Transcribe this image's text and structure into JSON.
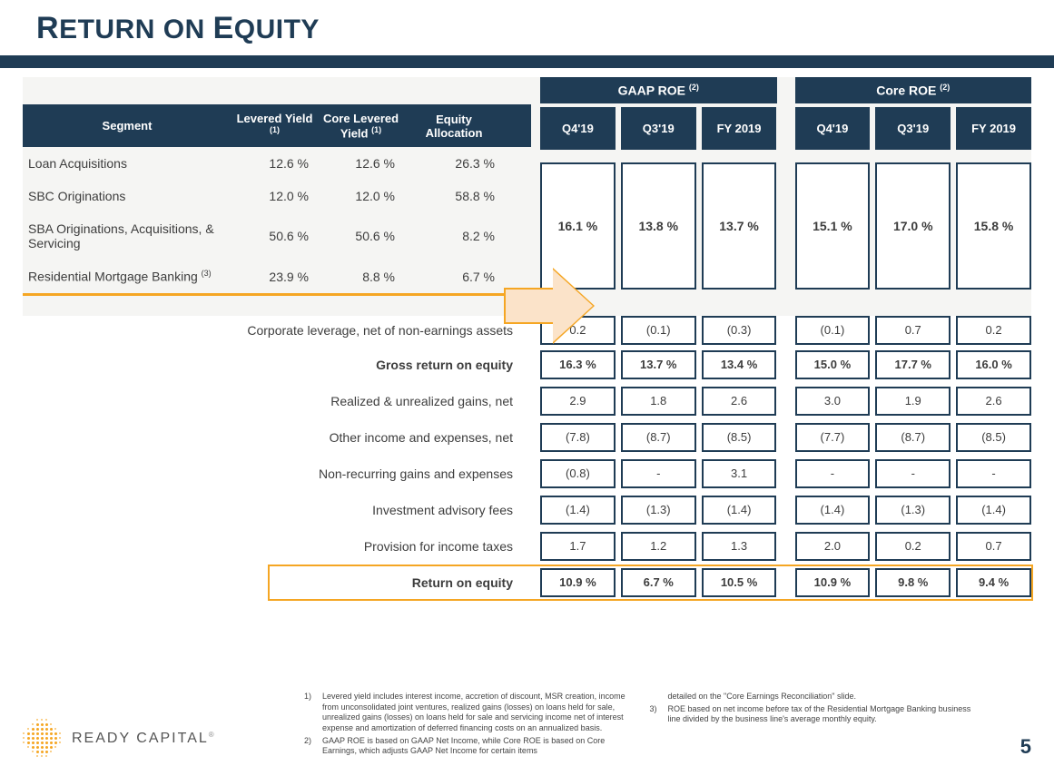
{
  "title_parts": {
    "r": "R",
    "eturn_on": "ETURN ON ",
    "e": "E",
    "quity": "QUITY"
  },
  "columns_left": {
    "segment": "Segment",
    "levered_yield": "Levered Yield ",
    "core_levered_yield": "Core Levered Yield ",
    "equity_allocation": "Equity Allocation",
    "yield_sup": "(1)"
  },
  "segments": [
    {
      "name": "Loan Acquisitions",
      "ly": "12.6 %",
      "cly": "12.6 %",
      "ea": "26.3 %"
    },
    {
      "name": "SBC Originations",
      "ly": "12.0 %",
      "cly": "12.0 %",
      "ea": "58.8 %"
    },
    {
      "name": "SBA Originations, Acquisitions, & Servicing",
      "ly": "50.6 %",
      "cly": "50.6 %",
      "ea": "8.2 %"
    },
    {
      "name": "Residential Mortgage Banking ",
      "sup": "(3)",
      "ly": "23.9 %",
      "cly": "8.8 %",
      "ea": "6.7 %"
    }
  ],
  "roe_groups": [
    {
      "title": "GAAP ROE ",
      "sup": "(2)",
      "cols": [
        "Q4'19",
        "Q3'19",
        "FY 2019"
      ],
      "segment_total": [
        "16.1  %",
        "13.8  %",
        "13.7  %"
      ]
    },
    {
      "title": "Core ROE ",
      "sup": "(2)",
      "cols": [
        "Q4'19",
        "Q3'19",
        "FY 2019"
      ],
      "segment_total": [
        "15.1  %",
        "17.0  %",
        "15.8  %"
      ]
    }
  ],
  "line_items": [
    {
      "label": "Corporate leverage, net of non-earnings assets",
      "bold": false,
      "v": [
        [
          "0.2",
          "(0.1)",
          "(0.3)"
        ],
        [
          "(0.1)",
          "0.7",
          "0.2"
        ]
      ]
    },
    {
      "label": "Gross return on equity",
      "bold": true,
      "v": [
        [
          "16.3 %",
          "13.7 %",
          "13.4 %"
        ],
        [
          "15.0 %",
          "17.7 %",
          "16.0 %"
        ]
      ]
    },
    {
      "label": "Realized & unrealized gains, net",
      "bold": false,
      "v": [
        [
          "2.9",
          "1.8",
          "2.6"
        ],
        [
          "3.0",
          "1.9",
          "2.6"
        ]
      ]
    },
    {
      "label": "Other income and expenses, net",
      "bold": false,
      "v": [
        [
          "(7.8)",
          "(8.7)",
          "(8.5)"
        ],
        [
          "(7.7)",
          "(8.7)",
          "(8.5)"
        ]
      ]
    },
    {
      "label": "Non-recurring gains and expenses",
      "bold": false,
      "v": [
        [
          "(0.8)",
          "-",
          "3.1"
        ],
        [
          "-",
          "-",
          "-"
        ]
      ]
    },
    {
      "label": "Investment advisory fees",
      "bold": false,
      "v": [
        [
          "(1.4)",
          "(1.3)",
          "(1.4)"
        ],
        [
          "(1.4)",
          "(1.3)",
          "(1.4)"
        ]
      ]
    },
    {
      "label": "Provision for income taxes",
      "bold": false,
      "v": [
        [
          "1.7",
          "1.2",
          "1.3"
        ],
        [
          "2.0",
          "0.2",
          "0.7"
        ]
      ]
    },
    {
      "label": "Return on equity",
      "bold": true,
      "v": [
        [
          "10.9 %",
          "6.7 %",
          "10.5 %"
        ],
        [
          "10.9 %",
          "9.8 %",
          "9.4 %"
        ]
      ]
    }
  ],
  "footnotes": {
    "col1": [
      {
        "num": "1)",
        "text": "Levered yield includes interest income, accretion of discount, MSR creation, income from unconsolidated joint ventures, realized gains (losses) on loans held for sale, unrealized gains (losses) on loans held for sale and servicing income net of interest expense and amortization of deferred financing costs on an annualized basis."
      },
      {
        "num": "2)",
        "text": "GAAP ROE is based on GAAP Net Income, while Core ROE is based on Core Earnings, which adjusts GAAP Net Income for certain items"
      }
    ],
    "col2": [
      {
        "num": "",
        "text": "detailed on  the \"Core Earnings Reconciliation\" slide."
      },
      {
        "num": "3)",
        "text": "ROE based on net income before tax of the Residential Mortgage Banking business line divided by the business line's average monthly equity."
      }
    ]
  },
  "logo_text": "READY CAPITAL",
  "page_number": "5"
}
